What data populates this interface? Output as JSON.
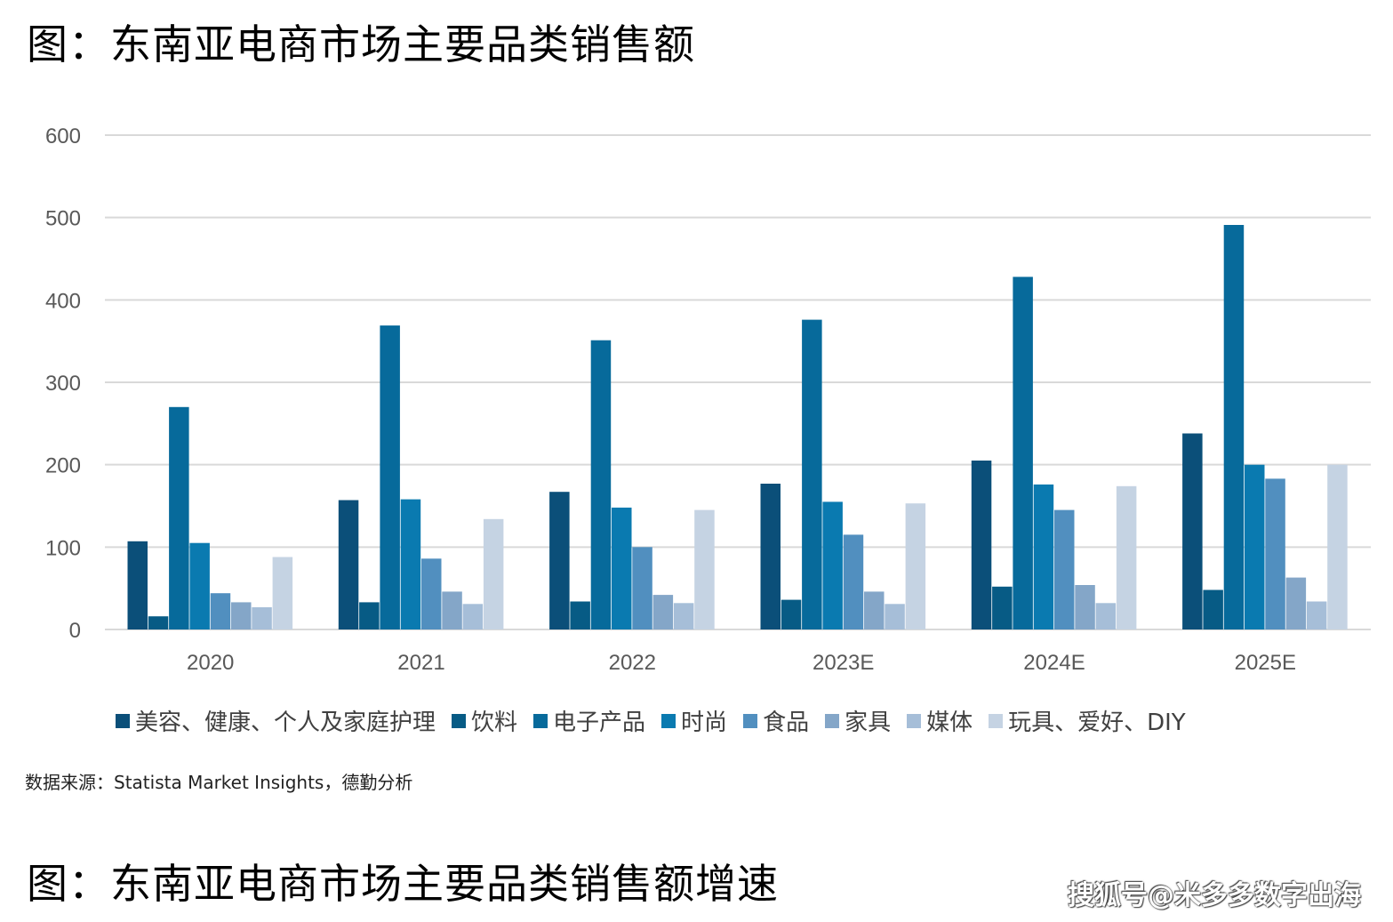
{
  "title_top": "图：东南亚电商市场主要品类销售额",
  "title_bottom": "图：东南亚电商市场主要品类销售额增速",
  "source": "数据来源：Statista Market Insights，德勤分析",
  "watermark": "搜狐号@米多多数字出海",
  "chart_data": {
    "type": "bar",
    "categories": [
      "2020",
      "2021",
      "2022",
      "2023E",
      "2024E",
      "2025E"
    ],
    "ylim": [
      0,
      600
    ],
    "yticks": [
      0,
      100,
      200,
      300,
      400,
      500,
      600
    ],
    "grid": true,
    "legend_position": "bottom",
    "series": [
      {
        "name": "美容、健康、个人及家庭护理",
        "color": "#0b4f79",
        "values": [
          107,
          157,
          167,
          177,
          205,
          238
        ]
      },
      {
        "name": "饮料",
        "color": "#075b85",
        "values": [
          16,
          33,
          34,
          36,
          52,
          48
        ]
      },
      {
        "name": "电子产品",
        "color": "#076a9b",
        "values": [
          270,
          369,
          351,
          376,
          428,
          491
        ]
      },
      {
        "name": "时尚",
        "color": "#0a7ab0",
        "values": [
          105,
          158,
          148,
          155,
          176,
          200
        ]
      },
      {
        "name": "食品",
        "color": "#518fbf",
        "values": [
          44,
          86,
          100,
          115,
          145,
          183
        ]
      },
      {
        "name": "家具",
        "color": "#84a6c8",
        "values": [
          33,
          46,
          42,
          46,
          54,
          63
        ]
      },
      {
        "name": "媒体",
        "color": "#a6bed8",
        "values": [
          27,
          31,
          32,
          31,
          32,
          34
        ]
      },
      {
        "name": "玩具、爱好、DIY",
        "color": "#c5d3e3",
        "values": [
          88,
          134,
          145,
          153,
          174,
          200
        ]
      }
    ]
  }
}
